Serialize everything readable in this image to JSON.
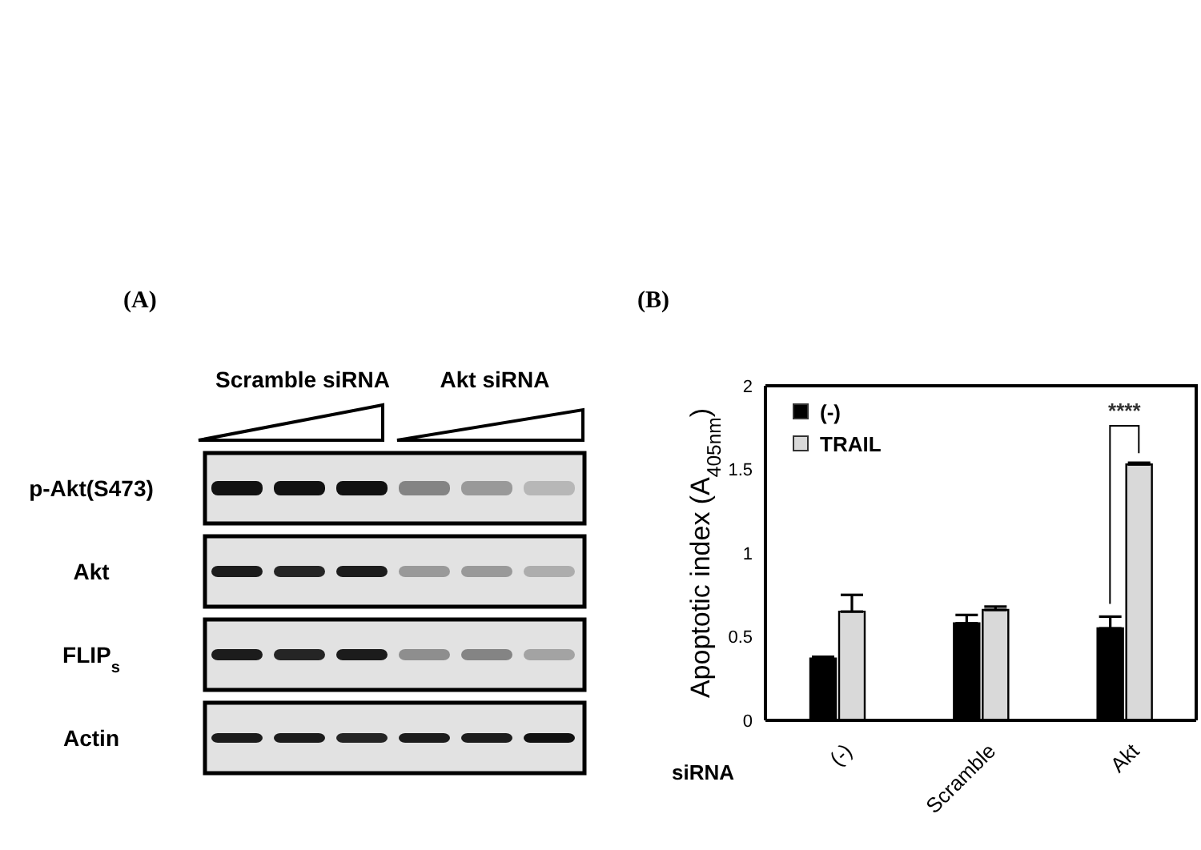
{
  "chart_data": [
    {
      "type": "other",
      "title": "(A)",
      "annotations": [
        "Scramble siRNA",
        "Akt siRNA",
        "p-Akt(S473)",
        "Akt",
        "FLIP$_{s}$",
        "Actin"
      ]
    },
    {
      "type": "bar",
      "title": "(B)",
      "xlabel": "siRNA",
      "ylabel": "Apoptotic index (A$_{405nm}$)",
      "categories": [
        "(-)",
        "Scramble",
        "Akt"
      ],
      "series": [
        {
          "name": "(-)",
          "color": "#000000",
          "values": [
            0.37,
            0.58,
            0.55
          ],
          "errors": [
            [
              0.37,
              0.38
            ],
            [
              0.58,
              0.63
            ],
            [
              0.55,
              0.62
            ]
          ]
        },
        {
          "name": "TRAIL",
          "color": "#d9d9d9",
          "values": [
            0.65,
            0.66,
            1.53
          ],
          "errors": [
            [
              0.65,
              0.75
            ],
            [
              0.66,
              0.68
            ],
            [
              1.53,
              1.54
            ]
          ]
        }
      ],
      "ylim": [
        0,
        2
      ],
      "yticks": [
        0,
        0.5,
        1,
        1.5,
        2
      ],
      "grid": false,
      "legend": "top left",
      "annotations": [
        "****"
      ]
    }
  ]
}
